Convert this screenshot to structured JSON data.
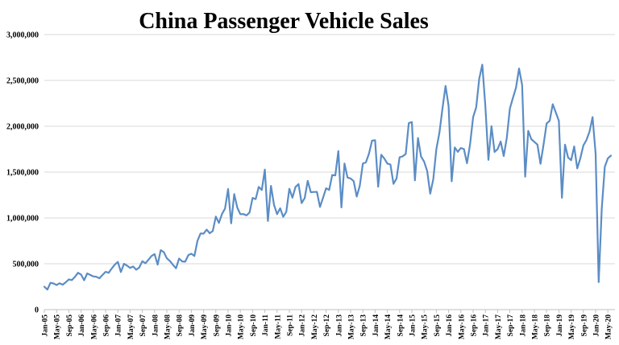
{
  "page": {
    "background": "#FFFFFF"
  },
  "title": "China Passenger Vehicle Sales",
  "chart_data": {
    "type": "line",
    "title": "China Passenger Vehicle Sales",
    "x_start": "Jan-2005",
    "x_end": "Jun-2020",
    "frequency": "monthly",
    "x_tick_labels": [
      "Jan-05",
      "May-05",
      "Sep-05",
      "Jan-06",
      "May-06",
      "Sep-06",
      "Jan-07",
      "May-07",
      "Sep-07",
      "Jan-08",
      "May-08",
      "Sep-08",
      "Jan-09",
      "May-09",
      "Sep-09",
      "Jan-10",
      "May-10",
      "Sep-10",
      "Jan-11",
      "May-11",
      "Sep-11",
      "Jan-12",
      "May-12",
      "Sep-12",
      "Jan-13",
      "May-13",
      "Sep-13",
      "Jan-14",
      "May-14",
      "Sep-14",
      "Jan-15",
      "May-15",
      "Sep-15",
      "Jan-16",
      "May-16",
      "Sep-16",
      "Jan-17",
      "May-17",
      "Sep-17",
      "Jan-18",
      "May-18",
      "Sep-18",
      "Jan-19",
      "May-19",
      "Sep-19",
      "Jan-20",
      "May-20"
    ],
    "x_tick_every_n_months": 4,
    "y_tick_labels": [
      "0",
      "500,000",
      "1,000,000",
      "1,500,000",
      "2,000,000",
      "2,500,000",
      "3,000,000"
    ],
    "ylim": [
      0,
      3000000
    ],
    "y_gridline_step": 500000,
    "grid": true,
    "legend": false,
    "series": [
      {
        "name": "China Passenger Vehicle Sales",
        "values": [
          250000,
          218000,
          292000,
          285000,
          268000,
          288000,
          272000,
          298000,
          330000,
          322000,
          358000,
          402000,
          382000,
          320000,
          395000,
          378000,
          362000,
          358000,
          342000,
          378000,
          412000,
          402000,
          448000,
          490000,
          520000,
          410000,
          500000,
          480000,
          455000,
          470000,
          435000,
          460000,
          528000,
          505000,
          545000,
          585000,
          605000,
          490000,
          648000,
          628000,
          560000,
          530000,
          489000,
          451000,
          557000,
          525000,
          523000,
          594000,
          610000,
          585000,
          750000,
          831000,
          829000,
          873000,
          833000,
          858000,
          1015000,
          946000,
          1042000,
          1103000,
          1316000,
          941000,
          1260000,
          1113000,
          1041000,
          1042000,
          1028000,
          1059000,
          1218000,
          1205000,
          1339000,
          1305000,
          1527000,
          967000,
          1350000,
          1141000,
          1041000,
          1105000,
          1012000,
          1067000,
          1318000,
          1221000,
          1337000,
          1369000,
          1162000,
          1216000,
          1404000,
          1281000,
          1283000,
          1284000,
          1120000,
          1220000,
          1324000,
          1305000,
          1468000,
          1464000,
          1730000,
          1115000,
          1593000,
          1440000,
          1431000,
          1402000,
          1233000,
          1352000,
          1593000,
          1606000,
          1702000,
          1843000,
          1847000,
          1340000,
          1689000,
          1648000,
          1593000,
          1583000,
          1372000,
          1431000,
          1662000,
          1672000,
          1697000,
          2035000,
          2046000,
          1410000,
          1872000,
          1669000,
          1615000,
          1511000,
          1265000,
          1424000,
          1751000,
          1930000,
          2196000,
          2440000,
          2220000,
          1400000,
          1768000,
          1721000,
          1763000,
          1751000,
          1597000,
          1802000,
          2099000,
          2205000,
          2519000,
          2672000,
          2217000,
          1633000,
          2000000,
          1720000,
          1751000,
          1833000,
          1675000,
          1875000,
          2193000,
          2310000,
          2420000,
          2630000,
          2450000,
          1450000,
          1950000,
          1860000,
          1830000,
          1800000,
          1590000,
          1800000,
          2030000,
          2060000,
          2240000,
          2150000,
          2060000,
          1220000,
          1800000,
          1660000,
          1630000,
          1780000,
          1540000,
          1650000,
          1790000,
          1850000,
          1940000,
          2100000,
          1700000,
          300000,
          1100000,
          1560000,
          1650000,
          1680000
        ]
      }
    ],
    "style": {
      "line_color": "#5B8DC5",
      "gridline_color": "#D9D9D9",
      "axis_color": "#BFBFBF",
      "text_color": "#000000",
      "background": "#FFFFFF"
    }
  }
}
